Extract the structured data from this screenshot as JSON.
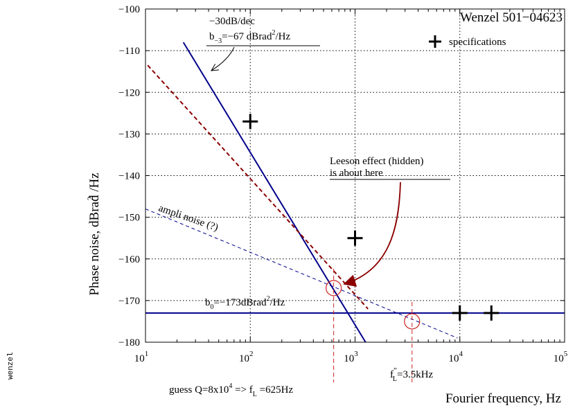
{
  "side_tag": "wenzel",
  "chart_data": {
    "type": "line",
    "title": "Wenzel 501−04623",
    "xlabel": "Fourier frequency, Hz",
    "ylabel": "Phase noise, dBrad  /Hz",
    "ylabel_sup": "2",
    "x_scale": "log",
    "xlim": [
      10,
      100000
    ],
    "ylim": [
      -180,
      -100
    ],
    "grid": true,
    "x_ticks": [
      {
        "base": "10",
        "exp": "1"
      },
      {
        "base": "10",
        "exp": "2"
      },
      {
        "base": "10",
        "exp": "3"
      },
      {
        "base": "10",
        "exp": "4"
      },
      {
        "base": "10",
        "exp": "5"
      }
    ],
    "y_ticks": [
      "−100",
      "−110",
      "−120",
      "−130",
      "−140",
      "−150",
      "−160",
      "−170",
      "−180"
    ],
    "legend": {
      "label": "specifications",
      "position": "top-right"
    },
    "series": [
      {
        "style": "solid",
        "color": "#00008b",
        "x": [
          23,
          1260
        ],
        "y": [
          -108,
          -180
        ]
      },
      {
        "style": "solid",
        "color": "#00008b",
        "x": [
          10,
          100000
        ],
        "y": [
          -173,
          -173
        ]
      },
      {
        "style": "dashed",
        "color": "#8b0000",
        "x": [
          10.5,
          1330
        ],
        "y": [
          -113.5,
          -172
        ]
      },
      {
        "style": "dashed",
        "color": "#00008b",
        "x": [
          10,
          9500
        ],
        "y": [
          -148,
          -179
        ]
      }
    ],
    "specifications": [
      {
        "x": 100,
        "y": -127
      },
      {
        "x": 1000,
        "y": -155
      },
      {
        "x": 10000,
        "y": -173
      },
      {
        "x": 20000,
        "y": -173
      }
    ],
    "highlight_points": [
      {
        "x": 625,
        "y": -167
      },
      {
        "x": 3500,
        "y": -175
      }
    ],
    "annotations": {
      "slope_label_1": "−30dB/dec",
      "slope_label_2_pre": "b",
      "slope_label_2_sub": "−3",
      "slope_label_2_mid": "=−67 dBrad",
      "slope_label_2_sup": "2",
      "slope_label_2_post": "/Hz",
      "leeson_1": "Leeson effect (hidden)",
      "leeson_2": "is about here",
      "ampli_noise": "ampli noise (?)",
      "b0_pre": "b",
      "b0_sub": "0",
      "b0_mid": "=−173dBrad",
      "b0_sup": "2",
      "b0_post": "/Hz",
      "guess_pre": "guess  Q=8x10",
      "guess_sup": "4",
      "guess_mid": " => f",
      "guess_sub": "L",
      "guess_post": " =625Hz",
      "fl2_pre": "f",
      "fl2_sup": "”",
      "fl2_sub": "L",
      "fl2_post": "=3.5kHz"
    }
  }
}
